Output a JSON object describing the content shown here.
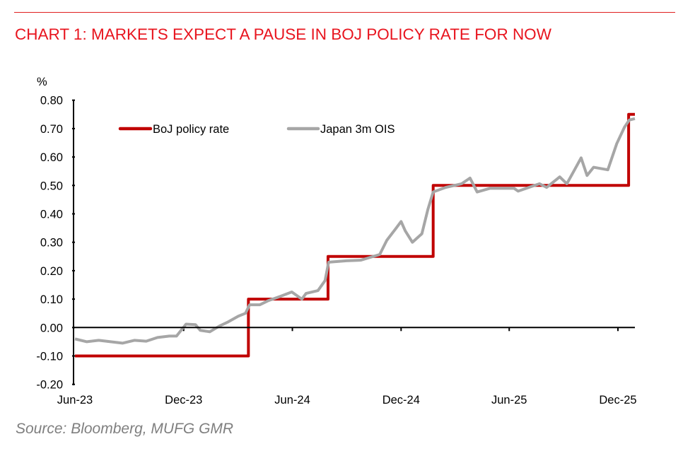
{
  "title": "CHART 1: MARKETS EXPECT A PAUSE IN BOJ POLICY RATE FOR NOW",
  "source": "Source: Bloomberg, MUFG GMR",
  "chart_data": {
    "type": "line",
    "title": "CHART 1: MARKETS EXPECT A PAUSE IN BOJ POLICY RATE FOR NOW",
    "xlabel": "",
    "ylabel": "%",
    "ylim": [
      -0.2,
      0.8
    ],
    "xlim": [
      "2023-06-01",
      "2025-12-30"
    ],
    "yticks": [
      "0.80",
      "0.70",
      "0.60",
      "0.50",
      "0.40",
      "0.30",
      "0.20",
      "0.10",
      "0.00",
      "-0.10",
      "-0.20"
    ],
    "ytick_values": [
      0.8,
      0.7,
      0.6,
      0.5,
      0.4,
      0.3,
      0.2,
      0.1,
      0.0,
      -0.1,
      -0.2
    ],
    "xticks": [
      {
        "label": "Jun-23",
        "date": "2023-06-01"
      },
      {
        "label": "Dec-23",
        "date": "2023-12-01"
      },
      {
        "label": "Jun-24",
        "date": "2024-06-01"
      },
      {
        "label": "Dec-24",
        "date": "2024-12-01"
      },
      {
        "label": "Jun-25",
        "date": "2025-06-01"
      },
      {
        "label": "Dec-25",
        "date": "2025-12-01"
      }
    ],
    "grid": false,
    "legend_position": "top-left",
    "series": [
      {
        "name": "BoJ policy rate",
        "color": "#c00000",
        "step": true,
        "points": [
          [
            "2023-06-01",
            -0.1
          ],
          [
            "2024-03-19",
            0.1
          ],
          [
            "2024-07-31",
            0.25
          ],
          [
            "2025-01-24",
            0.5
          ],
          [
            "2025-12-19",
            0.75
          ],
          [
            "2025-12-30",
            0.75
          ]
        ]
      },
      {
        "name": "Japan 3m OIS",
        "color": "#a6a6a6",
        "step": false,
        "points": [
          [
            "2023-06-01",
            -0.04
          ],
          [
            "2023-06-21",
            -0.05
          ],
          [
            "2023-07-11",
            -0.045
          ],
          [
            "2023-08-20",
            -0.055
          ],
          [
            "2023-09-09",
            -0.045
          ],
          [
            "2023-09-29",
            -0.048
          ],
          [
            "2023-10-18",
            -0.035
          ],
          [
            "2023-11-07",
            -0.03
          ],
          [
            "2023-11-19",
            -0.03
          ],
          [
            "2023-12-05",
            0.012
          ],
          [
            "2023-12-21",
            0.01
          ],
          [
            "2023-12-29",
            -0.01
          ],
          [
            "2024-01-14",
            -0.015
          ],
          [
            "2024-01-30",
            0.005
          ],
          [
            "2024-02-14",
            0.02
          ],
          [
            "2024-03-02",
            0.04
          ],
          [
            "2024-03-14",
            0.05
          ],
          [
            "2024-03-21",
            0.08
          ],
          [
            "2024-04-07",
            0.08
          ],
          [
            "2024-04-22",
            0.095
          ],
          [
            "2024-05-12",
            0.11
          ],
          [
            "2024-05-31",
            0.125
          ],
          [
            "2024-06-17",
            0.1
          ],
          [
            "2024-06-24",
            0.12
          ],
          [
            "2024-07-14",
            0.13
          ],
          [
            "2024-07-26",
            0.165
          ],
          [
            "2024-08-01",
            0.23
          ],
          [
            "2024-08-31",
            0.235
          ],
          [
            "2024-09-24",
            0.237
          ],
          [
            "2024-10-26",
            0.257
          ],
          [
            "2024-11-07",
            0.307
          ],
          [
            "2024-11-22",
            0.348
          ],
          [
            "2024-12-01",
            0.373
          ],
          [
            "2024-12-08",
            0.34
          ],
          [
            "2024-12-20",
            0.3
          ],
          [
            "2025-01-05",
            0.33
          ],
          [
            "2025-01-15",
            0.415
          ],
          [
            "2025-01-24",
            0.477
          ],
          [
            "2025-02-14",
            0.493
          ],
          [
            "2025-03-13",
            0.506
          ],
          [
            "2025-03-27",
            0.526
          ],
          [
            "2025-04-08",
            0.477
          ],
          [
            "2025-04-30",
            0.49
          ],
          [
            "2025-06-09",
            0.49
          ],
          [
            "2025-06-16",
            0.48
          ],
          [
            "2025-07-22",
            0.506
          ],
          [
            "2025-08-03",
            0.493
          ],
          [
            "2025-08-25",
            0.53
          ],
          [
            "2025-09-06",
            0.506
          ],
          [
            "2025-09-19",
            0.555
          ],
          [
            "2025-09-30",
            0.597
          ],
          [
            "2025-10-10",
            0.535
          ],
          [
            "2025-10-21",
            0.564
          ],
          [
            "2025-11-14",
            0.555
          ],
          [
            "2025-11-29",
            0.647
          ],
          [
            "2025-12-12",
            0.705
          ],
          [
            "2025-12-20",
            0.73
          ],
          [
            "2025-12-30",
            0.735
          ]
        ]
      }
    ]
  }
}
